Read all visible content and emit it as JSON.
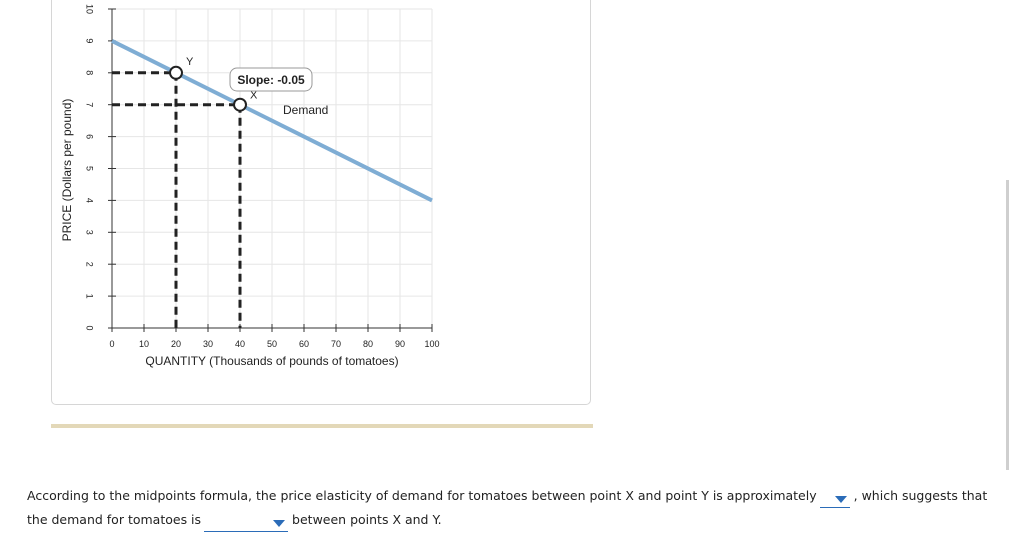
{
  "chart_data": {
    "type": "line",
    "xlabel": "QUANTITY (Thousands of pounds of tomatoes)",
    "ylabel": "PRICE (Dollars per pound)",
    "xlim": [
      0,
      100
    ],
    "ylim": [
      0,
      10
    ],
    "xticks": [
      "0",
      "10",
      "20",
      "30",
      "40",
      "50",
      "60",
      "70",
      "80",
      "90",
      "100"
    ],
    "yticks": [
      "0",
      "1",
      "2",
      "3",
      "4",
      "5",
      "6",
      "7",
      "8",
      "9",
      "10"
    ],
    "grid": true,
    "series": [
      {
        "name": "Demand",
        "x": [
          0,
          100
        ],
        "y": [
          9,
          4
        ],
        "color": "#7fadd4"
      }
    ],
    "points": [
      {
        "label": "Y",
        "x": 20,
        "y": 8
      },
      {
        "label": "X",
        "x": 40,
        "y": 7
      }
    ],
    "annotations": {
      "slope_label": "Slope: -0.05",
      "demand_label": "Demand"
    }
  },
  "question": {
    "text_1": "According to the midpoints formula, the price elasticity of demand for tomatoes between point X and point Y is approximately",
    "text_2": ", which suggests that the demand for tomatoes is",
    "text_3": "between points X and Y.",
    "dropdown_1_value": "",
    "dropdown_2_value": ""
  },
  "colors": {
    "demand_line": "#7fadd4",
    "dropdown_accent": "#2b6cb8",
    "separator": "#e3d8b8"
  }
}
